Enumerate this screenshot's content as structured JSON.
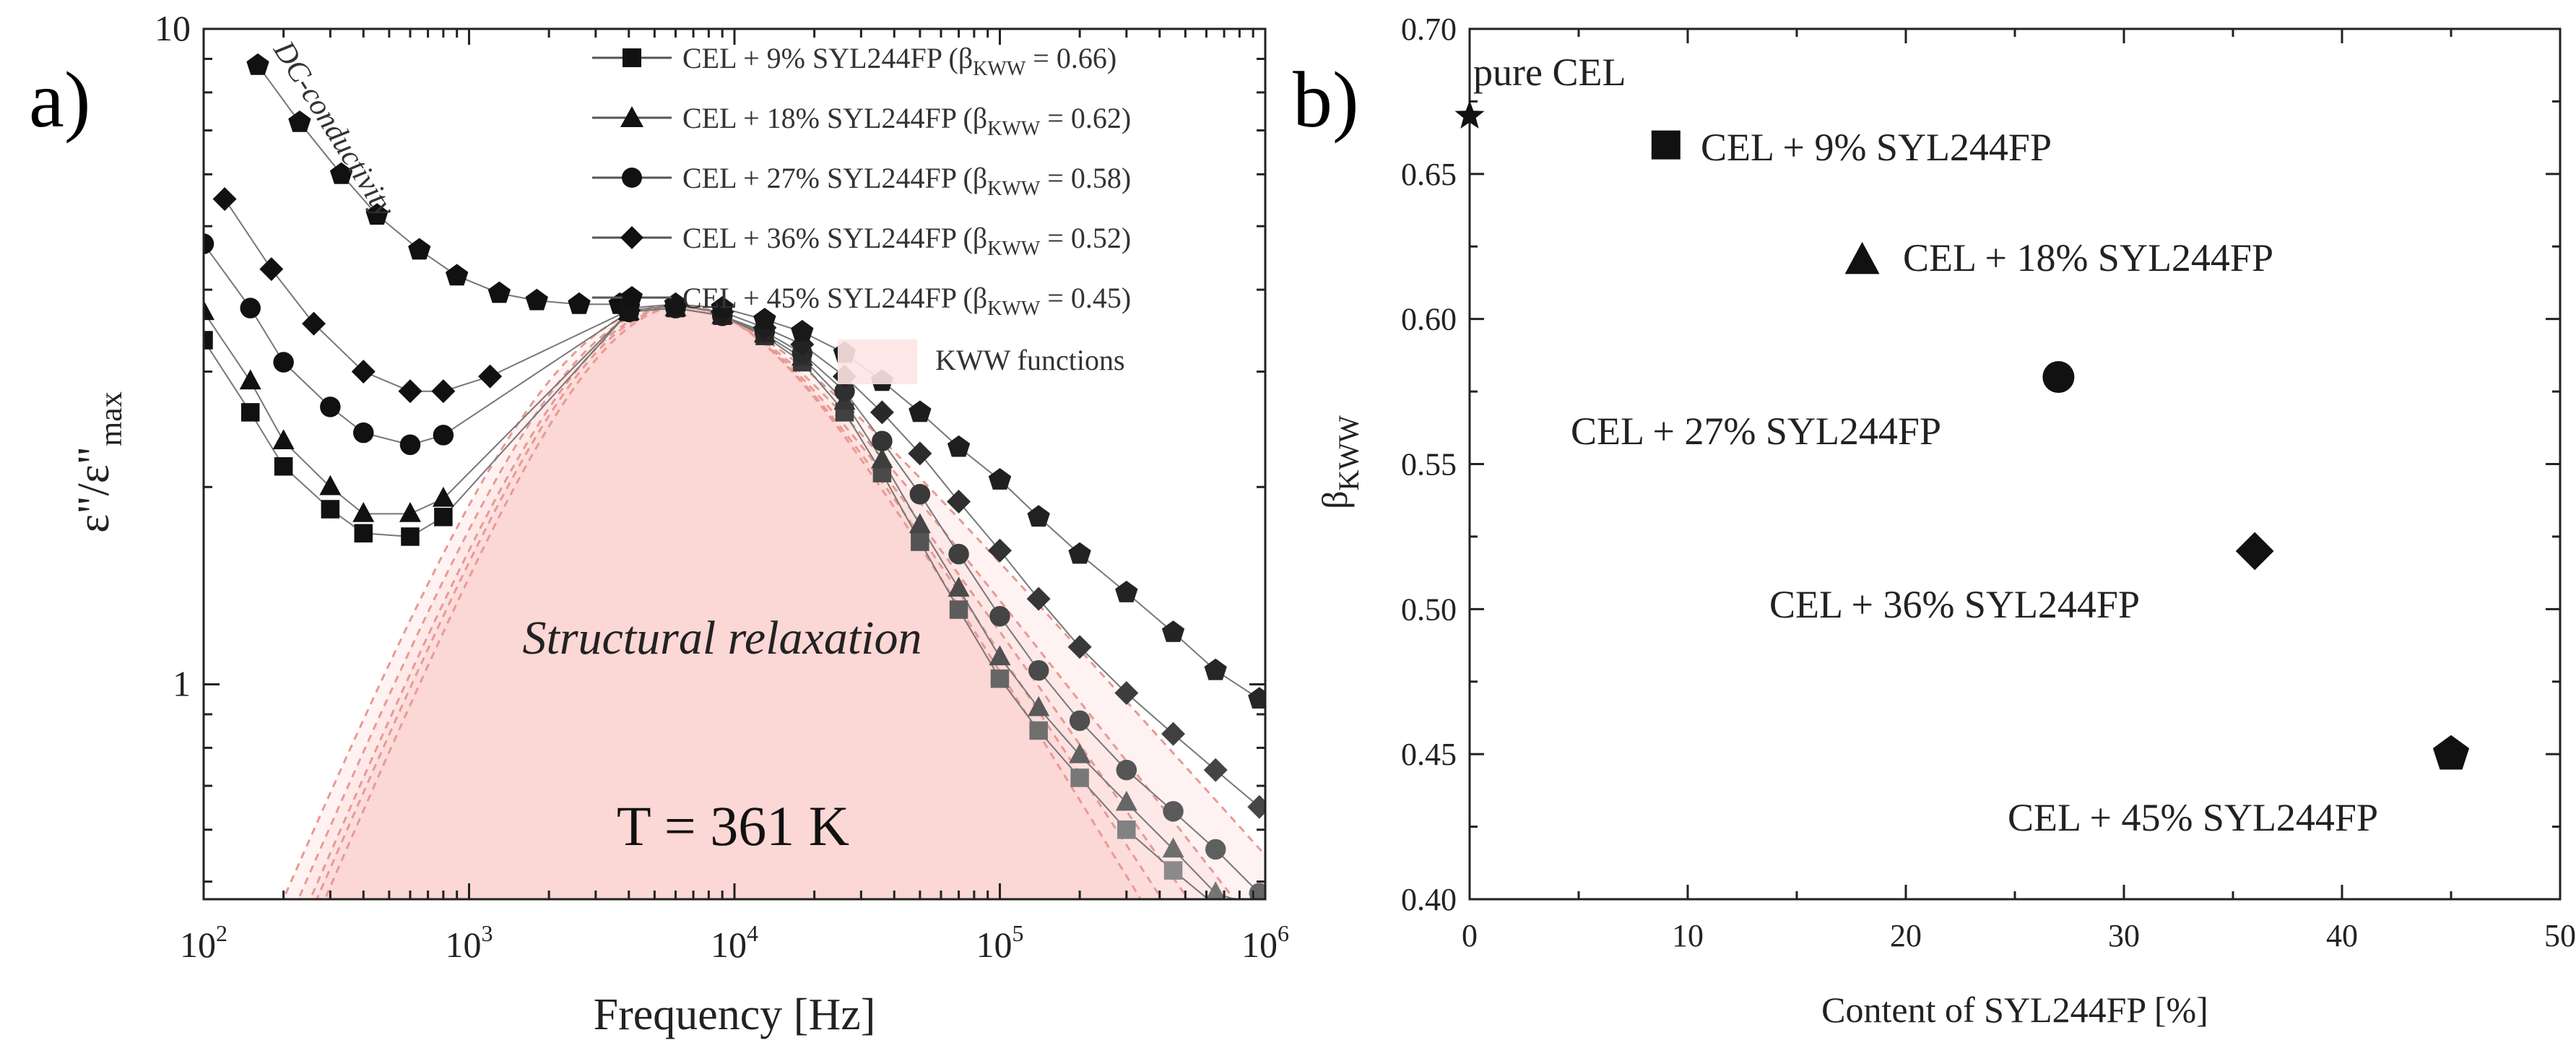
{
  "chart_data": [
    {
      "panel": "a)",
      "type": "scatter",
      "xscale": "log",
      "yscale": "log",
      "xlabel": "Frequency [Hz]",
      "ylabel_main": "ε\"/ε\"",
      "ylabel_sub": "max",
      "xlim": [
        100,
        1000000
      ],
      "ylim": [
        0.47,
        10
      ],
      "x_ticks": [
        {
          "v": 100,
          "base": "10",
          "exp": "2"
        },
        {
          "v": 1000,
          "base": "10",
          "exp": "3"
        },
        {
          "v": 10000,
          "base": "10",
          "exp": "4"
        },
        {
          "v": 100000,
          "base": "10",
          "exp": "5"
        },
        {
          "v": 1000000,
          "base": "10",
          "exp": "6"
        }
      ],
      "y_ticks": [
        {
          "v": 1,
          "label": "1"
        },
        {
          "v": 10,
          "label": "10"
        }
      ],
      "annotations": {
        "structural": "Structural relaxation",
        "dc": "DC-conductivity",
        "temperature": "T = 361 K"
      },
      "kww_label": "KWW functions",
      "legend_sub": "KWW",
      "series": [
        {
          "key": "s9",
          "name": "CEL + 9% SYL244FP",
          "marker": "square",
          "beta_prefix": " (β",
          "beta_suffix": " = 0.66)",
          "beta": 0.66,
          "fp": 6500,
          "dc": 0.0,
          "gray": 0.55,
          "x": [
            100,
            150,
            200,
            300,
            400,
            600,
            800,
            1200,
            1700,
            2500,
            3500,
            5000,
            7000,
            10000,
            15000,
            20000,
            30000,
            40000,
            60000,
            80000,
            120000,
            160000,
            250000,
            350000,
            500000,
            700000,
            1000000
          ]
        },
        {
          "key": "s18",
          "name": "CEL + 18% SYL244FP",
          "marker": "triangle",
          "beta_prefix": " (β",
          "beta_suffix": " = 0.62)",
          "beta": 0.62,
          "fp": 6300,
          "dc": 0.0,
          "gray": 0.45,
          "x": [
            100,
            150,
            200,
            300,
            400,
            600,
            800,
            1200,
            1700,
            2500,
            3500,
            5000,
            7000,
            10000,
            15000,
            20000,
            30000,
            40000,
            60000,
            80000,
            120000,
            160000,
            250000,
            350000,
            500000,
            700000,
            1000000
          ]
        },
        {
          "key": "s27",
          "name": "CEL + 27% SYL244FP",
          "marker": "circle",
          "beta_prefix": " (β",
          "beta_suffix": " = 0.58)",
          "beta": 0.58,
          "fp": 6200,
          "dc": 0.0,
          "gray": 0.35,
          "x": [
            100,
            150,
            200,
            300,
            400,
            600,
            800,
            1200,
            1700,
            2500,
            3500,
            5000,
            7000,
            10000,
            15000,
            20000,
            30000,
            40000,
            60000,
            80000,
            120000,
            160000,
            250000,
            350000,
            500000,
            700000,
            1000000
          ]
        },
        {
          "key": "s36",
          "name": "CEL + 36% SYL244FP",
          "marker": "diamond",
          "beta_prefix": " (β",
          "beta_suffix": " = 0.52)",
          "beta": 0.52,
          "fp": 6000,
          "dc": 0.0,
          "gray": 0.22,
          "x": [
            100,
            150,
            200,
            300,
            400,
            600,
            800,
            1200,
            1700,
            2500,
            3500,
            5000,
            7000,
            10000,
            15000,
            20000,
            30000,
            40000,
            60000,
            80000,
            120000,
            160000,
            250000,
            350000,
            500000,
            700000,
            1000000
          ]
        },
        {
          "key": "s45",
          "name": "CEL + 45% SYL244FP",
          "marker": "pentagon",
          "beta_prefix": " (β",
          "beta_suffix": " = 0.45)",
          "beta": 0.45,
          "fp": 5800,
          "dc": 0.0,
          "gray": 0.08,
          "x": [
            100,
            150,
            200,
            300,
            400,
            600,
            800,
            1200,
            1700,
            2500,
            3500,
            5000,
            7000,
            10000,
            15000,
            20000,
            30000,
            40000,
            60000,
            80000,
            120000,
            160000,
            250000,
            350000,
            500000,
            700000,
            1000000
          ]
        }
      ],
      "measured_low_freq": {
        "s9": [
          [
            100,
            3.35
          ],
          [
            150,
            2.6
          ],
          [
            200,
            2.15
          ],
          [
            300,
            1.85
          ],
          [
            400,
            1.7
          ],
          [
            600,
            1.68
          ],
          [
            800,
            1.8
          ]
        ],
        "s18": [
          [
            100,
            3.7
          ],
          [
            150,
            2.9
          ],
          [
            200,
            2.35
          ],
          [
            300,
            2.0
          ],
          [
            400,
            1.82
          ],
          [
            600,
            1.82
          ],
          [
            800,
            1.92
          ]
        ],
        "s27": [
          [
            100,
            4.7
          ],
          [
            150,
            3.75
          ],
          [
            200,
            3.1
          ],
          [
            300,
            2.65
          ],
          [
            400,
            2.42
          ],
          [
            600,
            2.32
          ],
          [
            800,
            2.4
          ]
        ],
        "s36": [
          [
            120,
            5.5
          ],
          [
            180,
            4.3
          ],
          [
            260,
            3.55
          ],
          [
            400,
            3.0
          ],
          [
            600,
            2.8
          ],
          [
            800,
            2.8
          ],
          [
            1200,
            2.95
          ]
        ],
        "s45": [
          [
            160,
            8.8
          ],
          [
            230,
            7.2
          ],
          [
            330,
            6.0
          ],
          [
            450,
            5.2
          ],
          [
            650,
            4.6
          ],
          [
            900,
            4.2
          ],
          [
            1300,
            3.95
          ],
          [
            1800,
            3.85
          ],
          [
            2600,
            3.8
          ],
          [
            3700,
            3.8
          ]
        ]
      },
      "measured_high_freq": {
        "s9": [
          [
            4000,
            3.7
          ],
          [
            6000,
            3.75
          ],
          [
            9000,
            3.65
          ],
          [
            13000,
            3.4
          ],
          [
            18000,
            3.1
          ],
          [
            26000,
            2.6
          ],
          [
            36000,
            2.1
          ],
          [
            50000,
            1.65
          ],
          [
            70000,
            1.3
          ],
          [
            100000,
            1.02
          ],
          [
            140000,
            0.85
          ],
          [
            200000,
            0.72
          ],
          [
            300000,
            0.6
          ],
          [
            450000,
            0.52
          ],
          [
            650000,
            0.46
          ]
        ],
        "s18": [
          [
            4000,
            3.7
          ],
          [
            6000,
            3.75
          ],
          [
            9000,
            3.65
          ],
          [
            13000,
            3.42
          ],
          [
            18000,
            3.15
          ],
          [
            26000,
            2.7
          ],
          [
            36000,
            2.2
          ],
          [
            50000,
            1.75
          ],
          [
            70000,
            1.4
          ],
          [
            100000,
            1.1
          ],
          [
            140000,
            0.92
          ],
          [
            200000,
            0.78
          ],
          [
            300000,
            0.66
          ],
          [
            450000,
            0.56
          ],
          [
            650000,
            0.48
          ],
          [
            900000,
            0.46
          ]
        ],
        "s27": [
          [
            4000,
            3.7
          ],
          [
            6000,
            3.75
          ],
          [
            9000,
            3.65
          ],
          [
            13000,
            3.45
          ],
          [
            18000,
            3.2
          ],
          [
            26000,
            2.8
          ],
          [
            36000,
            2.35
          ],
          [
            50000,
            1.95
          ],
          [
            70000,
            1.58
          ],
          [
            100000,
            1.27
          ],
          [
            140000,
            1.05
          ],
          [
            200000,
            0.88
          ],
          [
            300000,
            0.74
          ],
          [
            450000,
            0.64
          ],
          [
            650000,
            0.56
          ],
          [
            950000,
            0.48
          ]
        ],
        "s36": [
          [
            4000,
            3.72
          ],
          [
            6000,
            3.78
          ],
          [
            9000,
            3.7
          ],
          [
            13000,
            3.5
          ],
          [
            18000,
            3.3
          ],
          [
            26000,
            2.95
          ],
          [
            36000,
            2.6
          ],
          [
            50000,
            2.25
          ],
          [
            70000,
            1.9
          ],
          [
            100000,
            1.6
          ],
          [
            140000,
            1.35
          ],
          [
            200000,
            1.14
          ],
          [
            300000,
            0.97
          ],
          [
            450000,
            0.84
          ],
          [
            650000,
            0.74
          ],
          [
            950000,
            0.65
          ]
        ],
        "s45": [
          [
            4000,
            3.75
          ],
          [
            6000,
            3.8
          ],
          [
            9000,
            3.75
          ],
          [
            13000,
            3.6
          ],
          [
            18000,
            3.45
          ],
          [
            26000,
            3.2
          ],
          [
            36000,
            2.9
          ],
          [
            50000,
            2.6
          ],
          [
            70000,
            2.3
          ],
          [
            100000,
            2.05
          ],
          [
            140000,
            1.8
          ],
          [
            200000,
            1.58
          ],
          [
            300000,
            1.38
          ],
          [
            450000,
            1.2
          ],
          [
            650000,
            1.05
          ],
          [
            950000,
            0.95
          ]
        ]
      }
    },
    {
      "panel": "b)",
      "type": "scatter",
      "xlabel": "Content of SYL244FP [%]",
      "ylabel_main": "β",
      "ylabel_sub": "KWW",
      "xlim": [
        0,
        50
      ],
      "ylim": [
        0.4,
        0.7
      ],
      "x_ticks": [
        "0",
        "10",
        "20",
        "30",
        "40",
        "50"
      ],
      "y_ticks": [
        "0.40",
        "0.45",
        "0.50",
        "0.55",
        "0.60",
        "0.65",
        "0.70"
      ],
      "points": [
        {
          "x": 0,
          "y": 0.67,
          "marker": "star",
          "label": "pure CEL"
        },
        {
          "x": 9,
          "y": 0.66,
          "marker": "square",
          "label": "CEL + 9% SYL244FP"
        },
        {
          "x": 18,
          "y": 0.62,
          "marker": "triangle",
          "label": "CEL + 18% SYL244FP"
        },
        {
          "x": 27,
          "y": 0.58,
          "marker": "circle",
          "label": "CEL + 27% SYL244FP"
        },
        {
          "x": 36,
          "y": 0.52,
          "marker": "diamond",
          "label": "CEL + 36% SYL244FP"
        },
        {
          "x": 45,
          "y": 0.45,
          "marker": "pentagon",
          "label": "CEL + 45% SYL244FP"
        }
      ]
    }
  ]
}
